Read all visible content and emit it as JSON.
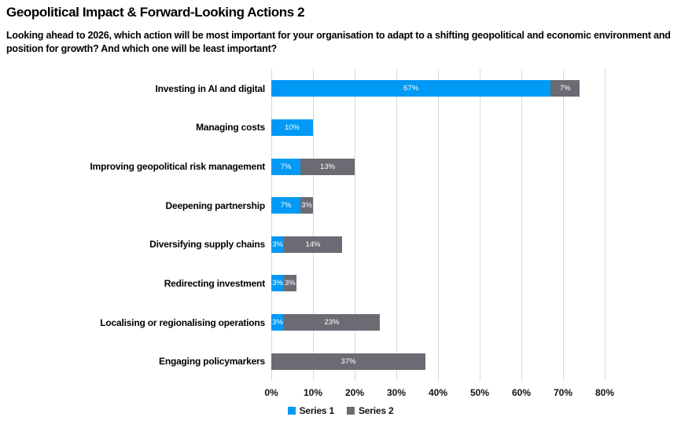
{
  "page": {
    "title": "Geopolitical Impact & Forward-Looking Actions 2",
    "subtitle": "Looking ahead to 2026, which action will be most important for your organisation to adapt to a shifting geopolitical and economic environment and position for growth? And which one will be least important?"
  },
  "chart_data": {
    "type": "bar",
    "orientation": "horizontal",
    "stacked": true,
    "title": "Geopolitical Impact & Forward-Looking Actions 2",
    "categories": [
      "Investing in AI and digital",
      "Managing costs",
      "Improving geopolitical risk management",
      "Deepening partnership",
      "Diversifying supply chains",
      "Redirecting investment",
      "Localising or regionalising operations",
      "Engaging policymarkers"
    ],
    "series": [
      {
        "name": "Series 1",
        "color": "#0099f5",
        "values": [
          67,
          10,
          7,
          7,
          3,
          3,
          3,
          0
        ]
      },
      {
        "name": "Series 2",
        "color": "#6b6b74",
        "values": [
          7,
          0,
          13,
          3,
          14,
          3,
          23,
          37
        ]
      }
    ],
    "value_suffix": "%",
    "xlim": [
      0,
      80
    ],
    "x_ticks": [
      "0%",
      "10%",
      "20%",
      "30%",
      "40%",
      "50%",
      "60%",
      "70%",
      "80%"
    ],
    "grid": "vertical",
    "gridline_color": "#d9d9d9",
    "bar_label_color": "#ffffff",
    "legend_position": "bottom",
    "background_color": "#ffffff"
  }
}
